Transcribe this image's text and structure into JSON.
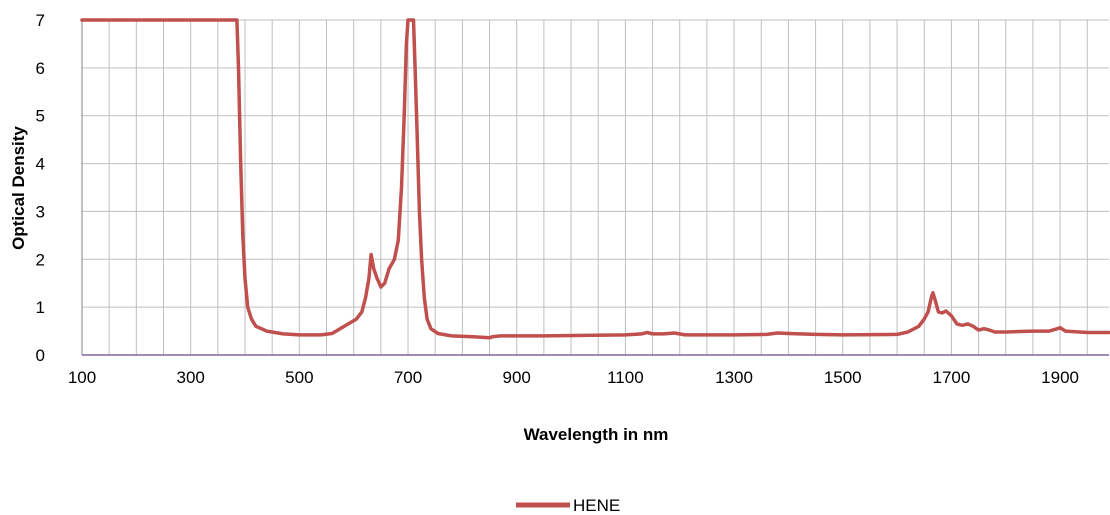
{
  "chart_data": {
    "type": "line",
    "xlabel": "Wavelength in nm",
    "ylabel": "Optical Density",
    "xlim": [
      100,
      1990
    ],
    "ylim": [
      0,
      7
    ],
    "x_ticks": [
      100,
      300,
      500,
      700,
      900,
      1100,
      1300,
      1500,
      1700,
      1900
    ],
    "y_ticks": [
      0,
      1,
      2,
      3,
      4,
      5,
      6,
      7
    ],
    "grid": "vertical every 50 nm, horizontal every 1 OD",
    "legend_position": "bottom-center",
    "series": [
      {
        "name": "HENE",
        "color": "#c0504d",
        "points": [
          [
            100,
            7
          ],
          [
            385,
            7
          ],
          [
            388,
            6.0
          ],
          [
            392,
            4.0
          ],
          [
            396,
            2.5
          ],
          [
            400,
            1.6
          ],
          [
            405,
            1.0
          ],
          [
            412,
            0.75
          ],
          [
            420,
            0.6
          ],
          [
            440,
            0.5
          ],
          [
            470,
            0.44
          ],
          [
            500,
            0.42
          ],
          [
            540,
            0.42
          ],
          [
            560,
            0.45
          ],
          [
            575,
            0.55
          ],
          [
            590,
            0.65
          ],
          [
            605,
            0.75
          ],
          [
            615,
            0.9
          ],
          [
            622,
            1.2
          ],
          [
            628,
            1.6
          ],
          [
            632,
            2.1
          ],
          [
            637,
            1.8
          ],
          [
            643,
            1.6
          ],
          [
            650,
            1.42
          ],
          [
            657,
            1.5
          ],
          [
            665,
            1.8
          ],
          [
            675,
            2.0
          ],
          [
            682,
            2.4
          ],
          [
            688,
            3.5
          ],
          [
            693,
            5.0
          ],
          [
            697,
            6.5
          ],
          [
            700,
            7
          ],
          [
            710,
            7
          ],
          [
            713,
            6.0
          ],
          [
            717,
            4.5
          ],
          [
            721,
            3.0
          ],
          [
            725,
            2.0
          ],
          [
            730,
            1.2
          ],
          [
            735,
            0.75
          ],
          [
            742,
            0.55
          ],
          [
            755,
            0.45
          ],
          [
            780,
            0.4
          ],
          [
            820,
            0.38
          ],
          [
            850,
            0.36
          ],
          [
            855,
            0.38
          ],
          [
            870,
            0.4
          ],
          [
            950,
            0.4
          ],
          [
            1100,
            0.42
          ],
          [
            1130,
            0.44
          ],
          [
            1140,
            0.47
          ],
          [
            1150,
            0.44
          ],
          [
            1170,
            0.44
          ],
          [
            1190,
            0.46
          ],
          [
            1210,
            0.42
          ],
          [
            1300,
            0.42
          ],
          [
            1360,
            0.43
          ],
          [
            1380,
            0.46
          ],
          [
            1400,
            0.45
          ],
          [
            1450,
            0.43
          ],
          [
            1500,
            0.42
          ],
          [
            1600,
            0.43
          ],
          [
            1620,
            0.48
          ],
          [
            1640,
            0.6
          ],
          [
            1650,
            0.75
          ],
          [
            1657,
            0.9
          ],
          [
            1663,
            1.2
          ],
          [
            1666,
            1.3
          ],
          [
            1670,
            1.15
          ],
          [
            1676,
            0.9
          ],
          [
            1683,
            0.88
          ],
          [
            1690,
            0.92
          ],
          [
            1700,
            0.82
          ],
          [
            1710,
            0.65
          ],
          [
            1720,
            0.62
          ],
          [
            1730,
            0.65
          ],
          [
            1740,
            0.6
          ],
          [
            1750,
            0.52
          ],
          [
            1760,
            0.55
          ],
          [
            1770,
            0.52
          ],
          [
            1780,
            0.48
          ],
          [
            1800,
            0.48
          ],
          [
            1850,
            0.5
          ],
          [
            1880,
            0.5
          ],
          [
            1895,
            0.55
          ],
          [
            1900,
            0.57
          ],
          [
            1910,
            0.5
          ],
          [
            1950,
            0.47
          ],
          [
            1990,
            0.47
          ]
        ]
      }
    ]
  }
}
